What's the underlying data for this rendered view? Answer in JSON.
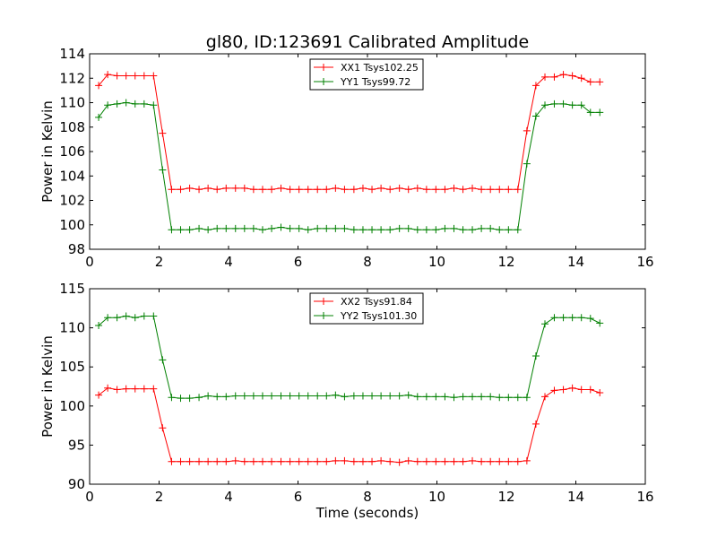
{
  "figure": {
    "title": "gl80, ID:123691 Calibrated Amplitude"
  },
  "chart_data": [
    {
      "type": "line",
      "title": "gl80, ID:123691 Calibrated Amplitude",
      "xlabel": "",
      "ylabel": "Power in Kelvin",
      "xlim": [
        0,
        16
      ],
      "ylim": [
        98,
        114
      ],
      "xticks": [
        0,
        2,
        4,
        6,
        8,
        10,
        12,
        14,
        16
      ],
      "yticks": [
        98,
        100,
        102,
        104,
        106,
        108,
        110,
        112,
        114
      ],
      "grid": false,
      "legend_position": "top-center",
      "x": [
        0.26,
        0.52,
        0.79,
        1.05,
        1.31,
        1.57,
        1.84,
        2.1,
        2.36,
        2.62,
        2.88,
        3.15,
        3.41,
        3.67,
        3.93,
        4.2,
        4.46,
        4.72,
        4.98,
        5.24,
        5.51,
        5.77,
        6.03,
        6.29,
        6.56,
        6.82,
        7.08,
        7.34,
        7.61,
        7.87,
        8.13,
        8.39,
        8.65,
        8.92,
        9.18,
        9.44,
        9.7,
        9.97,
        10.23,
        10.49,
        10.75,
        11.02,
        11.28,
        11.54,
        11.8,
        12.06,
        12.33,
        12.59,
        12.85,
        13.11,
        13.38,
        13.64,
        13.9,
        14.16,
        14.42,
        14.69
      ],
      "series": [
        {
          "name": "XX1 Tsys102.25",
          "color": "#ff0000",
          "values": [
            111.4,
            112.3,
            112.2,
            112.2,
            112.2,
            112.2,
            112.2,
            107.5,
            102.9,
            102.9,
            103.0,
            102.9,
            103.0,
            102.9,
            103.0,
            103.0,
            103.0,
            102.9,
            102.9,
            102.9,
            103.0,
            102.9,
            102.9,
            102.9,
            102.9,
            102.9,
            103.0,
            102.9,
            102.9,
            103.0,
            102.9,
            103.0,
            102.9,
            103.0,
            102.9,
            103.0,
            102.9,
            102.9,
            102.9,
            103.0,
            102.9,
            103.0,
            102.9,
            102.9,
            102.9,
            102.9,
            102.9,
            107.7,
            111.4,
            112.1,
            112.1,
            112.3,
            112.2,
            112.0,
            111.7,
            111.7
          ]
        },
        {
          "name": "YY1 Tsys99.72",
          "color": "#008000",
          "values": [
            108.8,
            109.8,
            109.9,
            110.0,
            109.9,
            109.9,
            109.8,
            104.5,
            99.6,
            99.6,
            99.6,
            99.7,
            99.6,
            99.7,
            99.7,
            99.7,
            99.7,
            99.7,
            99.6,
            99.7,
            99.8,
            99.7,
            99.7,
            99.6,
            99.7,
            99.7,
            99.7,
            99.7,
            99.6,
            99.6,
            99.6,
            99.6,
            99.6,
            99.7,
            99.7,
            99.6,
            99.6,
            99.6,
            99.7,
            99.7,
            99.6,
            99.6,
            99.7,
            99.7,
            99.6,
            99.6,
            99.6,
            105.0,
            108.9,
            109.8,
            109.9,
            109.9,
            109.8,
            109.8,
            109.2,
            109.2
          ]
        }
      ]
    },
    {
      "type": "line",
      "title": "",
      "xlabel": "Time (seconds)",
      "ylabel": "Power in Kelvin",
      "xlim": [
        0,
        16
      ],
      "ylim": [
        90,
        115
      ],
      "xticks": [
        0,
        2,
        4,
        6,
        8,
        10,
        12,
        14,
        16
      ],
      "yticks": [
        90,
        95,
        100,
        105,
        110,
        115
      ],
      "grid": false,
      "legend_position": "top-center",
      "x": [
        0.26,
        0.52,
        0.79,
        1.05,
        1.31,
        1.57,
        1.84,
        2.1,
        2.36,
        2.62,
        2.88,
        3.15,
        3.41,
        3.67,
        3.93,
        4.2,
        4.46,
        4.72,
        4.98,
        5.24,
        5.51,
        5.77,
        6.03,
        6.29,
        6.56,
        6.82,
        7.08,
        7.34,
        7.61,
        7.87,
        8.13,
        8.39,
        8.65,
        8.92,
        9.18,
        9.44,
        9.7,
        9.97,
        10.23,
        10.49,
        10.75,
        11.02,
        11.28,
        11.54,
        11.8,
        12.06,
        12.33,
        12.59,
        12.85,
        13.11,
        13.38,
        13.64,
        13.9,
        14.16,
        14.42,
        14.69
      ],
      "series": [
        {
          "name": "XX2 Tsys91.84",
          "color": "#ff0000",
          "values": [
            101.4,
            102.3,
            102.1,
            102.2,
            102.2,
            102.2,
            102.2,
            97.2,
            92.9,
            92.9,
            92.9,
            92.9,
            92.9,
            92.9,
            92.9,
            93.0,
            92.9,
            92.9,
            92.9,
            92.9,
            92.9,
            92.9,
            92.9,
            92.9,
            92.9,
            92.9,
            93.0,
            93.0,
            92.9,
            92.9,
            92.9,
            93.0,
            92.9,
            92.8,
            93.0,
            92.9,
            92.9,
            92.9,
            92.9,
            92.9,
            92.9,
            93.0,
            92.9,
            92.9,
            92.9,
            92.9,
            92.9,
            93.0,
            97.7,
            101.2,
            102.0,
            102.1,
            102.3,
            102.1,
            102.1,
            101.7
          ]
        },
        {
          "name": "YY2 Tsys101.30",
          "color": "#008000",
          "values": [
            110.3,
            111.3,
            111.3,
            111.5,
            111.3,
            111.5,
            111.5,
            105.9,
            101.1,
            101.0,
            101.0,
            101.1,
            101.3,
            101.2,
            101.2,
            101.3,
            101.3,
            101.3,
            101.3,
            101.3,
            101.3,
            101.3,
            101.3,
            101.3,
            101.3,
            101.3,
            101.4,
            101.2,
            101.3,
            101.3,
            101.3,
            101.3,
            101.3,
            101.3,
            101.4,
            101.2,
            101.2,
            101.2,
            101.2,
            101.1,
            101.2,
            101.2,
            101.2,
            101.2,
            101.1,
            101.1,
            101.1,
            101.1,
            106.4,
            110.5,
            111.3,
            111.3,
            111.3,
            111.3,
            111.2,
            110.6
          ]
        }
      ]
    }
  ]
}
